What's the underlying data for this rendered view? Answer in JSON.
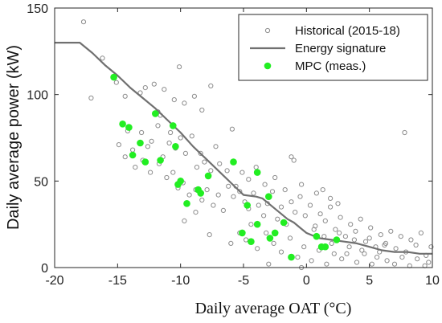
{
  "chart_data": {
    "type": "scatter",
    "xlabel": "Daily average OAT (°C)",
    "ylabel": "Daily average power (kW)",
    "xlim": [
      -20,
      10
    ],
    "ylim": [
      0,
      150
    ],
    "xticks": [
      -20,
      -15,
      -10,
      -5,
      0,
      5,
      10
    ],
    "yticks": [
      0,
      50,
      100,
      150
    ],
    "grid": false,
    "legend_position": "top-right",
    "legend": [
      "Historical (2015-18)",
      "Energy signature",
      "MPC (meas.)"
    ],
    "colors": {
      "historical": "#8c8c8c",
      "signature": "#707070",
      "mpc": "#22ee22"
    },
    "series": [
      {
        "name": "Historical (2015-18)",
        "marker": "open-circle",
        "points": [
          [
            -17.7,
            142
          ],
          [
            -16.2,
            121
          ],
          [
            -17.1,
            98
          ],
          [
            -15.1,
            107
          ],
          [
            -14.4,
            99
          ],
          [
            -13.2,
            101
          ],
          [
            -12.8,
            104
          ],
          [
            -12.1,
            106
          ],
          [
            -11.8,
            90
          ],
          [
            -11.3,
            103
          ],
          [
            -11.6,
            88
          ],
          [
            -10.8,
            78
          ],
          [
            -10.5,
            97
          ],
          [
            -10.1,
            116
          ],
          [
            -9.7,
            95
          ],
          [
            -8.9,
            99
          ],
          [
            -8.3,
            91
          ],
          [
            -7.6,
            105
          ],
          [
            -14.9,
            71
          ],
          [
            -14.2,
            79
          ],
          [
            -13.8,
            68
          ],
          [
            -13.1,
            78
          ],
          [
            -12.6,
            70
          ],
          [
            -12.3,
            73
          ],
          [
            -11.8,
            82
          ],
          [
            -11.4,
            64
          ],
          [
            -10.9,
            72
          ],
          [
            -10.4,
            69
          ],
          [
            -10.0,
            75
          ],
          [
            -9.6,
            66
          ],
          [
            -9.1,
            76
          ],
          [
            -8.7,
            58
          ],
          [
            -8.4,
            66
          ],
          [
            -8.1,
            61
          ],
          [
            -7.6,
            56
          ],
          [
            -7.2,
            70
          ],
          [
            -6.9,
            60
          ],
          [
            -6.3,
            56
          ],
          [
            -5.9,
            80
          ],
          [
            -14.4,
            64
          ],
          [
            -13.6,
            58
          ],
          [
            -13.0,
            62
          ],
          [
            -12.4,
            55
          ],
          [
            -11.7,
            60
          ],
          [
            -11.1,
            52
          ],
          [
            -10.6,
            55
          ],
          [
            -10.2,
            46
          ],
          [
            -9.8,
            49
          ],
          [
            -9.3,
            42
          ],
          [
            -8.8,
            45
          ],
          [
            -8.3,
            39
          ],
          [
            -7.9,
            45
          ],
          [
            -7.4,
            36
          ],
          [
            -7.0,
            42
          ],
          [
            -6.6,
            33
          ],
          [
            -6.2,
            47
          ],
          [
            -5.8,
            41
          ],
          [
            -5.3,
            44
          ],
          [
            -4.9,
            38
          ],
          [
            -4.6,
            34
          ],
          [
            -4.2,
            43
          ],
          [
            -3.8,
            36
          ],
          [
            -3.4,
            30
          ],
          [
            -3.1,
            37
          ],
          [
            -2.7,
            44
          ],
          [
            -2.3,
            28
          ],
          [
            -2.0,
            35
          ],
          [
            -1.6,
            25
          ],
          [
            -1.2,
            38
          ],
          [
            -0.9,
            32
          ],
          [
            -0.5,
            41
          ],
          [
            -0.1,
            30
          ],
          [
            0.3,
            36
          ],
          [
            0.7,
            24
          ],
          [
            1.1,
            31
          ],
          [
            1.5,
            27
          ],
          [
            1.9,
            35
          ],
          [
            2.3,
            22
          ],
          [
            2.7,
            29
          ],
          [
            3.1,
            18
          ],
          [
            3.5,
            25
          ],
          [
            3.9,
            21
          ],
          [
            4.3,
            28
          ],
          [
            4.7,
            15
          ],
          [
            5.1,
            23
          ],
          [
            5.5,
            12
          ],
          [
            5.9,
            19
          ],
          [
            6.3,
            14
          ],
          [
            6.7,
            21
          ],
          [
            7.1,
            11
          ],
          [
            7.5,
            18
          ],
          [
            7.9,
            9
          ],
          [
            8.3,
            16
          ],
          [
            8.7,
            13
          ],
          [
            9.1,
            20
          ],
          [
            9.5,
            7
          ],
          [
            9.9,
            12
          ],
          [
            9.7,
            3
          ],
          [
            -6.0,
            14
          ],
          [
            -5.3,
            20
          ],
          [
            -4.8,
            16
          ],
          [
            -4.4,
            25
          ],
          [
            -3.9,
            11
          ],
          [
            -3.2,
            20
          ],
          [
            -2.6,
            14
          ],
          [
            -2.0,
            9
          ],
          [
            -1.3,
            17
          ],
          [
            -0.7,
            6
          ],
          [
            -0.2,
            12
          ],
          [
            0.4,
            4
          ],
          [
            1.0,
            10
          ],
          [
            1.6,
            2
          ],
          [
            2.2,
            8
          ],
          [
            2.8,
            5
          ],
          [
            3.4,
            12
          ],
          [
            4.0,
            3
          ],
          [
            4.6,
            8
          ],
          [
            5.2,
            2
          ],
          [
            5.8,
            9
          ],
          [
            6.4,
            4
          ],
          [
            7.0,
            2
          ],
          [
            7.6,
            6
          ],
          [
            8.2,
            1
          ],
          [
            8.8,
            5
          ],
          [
            9.4,
            1
          ],
          [
            0.8,
            43
          ],
          [
            1.3,
            45
          ],
          [
            1.9,
            40
          ],
          [
            2.5,
            37
          ],
          [
            -0.4,
            48
          ],
          [
            -1.0,
            62
          ],
          [
            -1.7,
            45
          ],
          [
            -2.5,
            52
          ],
          [
            -3.3,
            48
          ],
          [
            -4.0,
            58
          ],
          [
            -4.6,
            51
          ],
          [
            -5.1,
            55
          ],
          [
            -5.6,
            47
          ],
          [
            7.8,
            78
          ],
          [
            -1.2,
            64
          ],
          [
            -9.7,
            27
          ],
          [
            -8.8,
            32
          ],
          [
            -7.7,
            19
          ],
          [
            -3.0,
            2
          ],
          [
            -0.4,
            0
          ],
          [
            0.6,
            22
          ],
          [
            1.4,
            18
          ],
          [
            2.0,
            14
          ],
          [
            2.6,
            20
          ],
          [
            3.2,
            8
          ],
          [
            3.8,
            16
          ],
          [
            4.4,
            10
          ],
          [
            5.0,
            17
          ],
          [
            5.6,
            6
          ],
          [
            6.2,
            13
          ]
        ]
      },
      {
        "name": "Energy signature",
        "marker": "line",
        "points": [
          [
            -20,
            130
          ],
          [
            -18,
            130
          ],
          [
            -17,
            124
          ],
          [
            -16,
            117
          ],
          [
            -15,
            111
          ],
          [
            -14,
            104
          ],
          [
            -13,
            98
          ],
          [
            -12,
            92
          ],
          [
            -11,
            85
          ],
          [
            -10,
            78
          ],
          [
            -9,
            70
          ],
          [
            -8,
            63
          ],
          [
            -7,
            56
          ],
          [
            -6,
            49
          ],
          [
            -5,
            42
          ],
          [
            -4,
            41
          ],
          [
            -3.5,
            40
          ],
          [
            -3,
            37
          ],
          [
            -2.5,
            34
          ],
          [
            -2,
            31
          ],
          [
            -1.5,
            28
          ],
          [
            -1,
            26
          ],
          [
            -0.5,
            23
          ],
          [
            0,
            20
          ],
          [
            1,
            17
          ],
          [
            2,
            16
          ],
          [
            3,
            15
          ],
          [
            4,
            14
          ],
          [
            5,
            12
          ],
          [
            6,
            10
          ],
          [
            7,
            9
          ],
          [
            8,
            9
          ],
          [
            9,
            8
          ],
          [
            10,
            8
          ]
        ]
      },
      {
        "name": "MPC (meas.)",
        "marker": "filled-circle",
        "points": [
          [
            -15.3,
            110
          ],
          [
            -14.6,
            83
          ],
          [
            -14.1,
            81
          ],
          [
            -13.8,
            65
          ],
          [
            -13.2,
            72
          ],
          [
            -12.8,
            61
          ],
          [
            -12.0,
            89
          ],
          [
            -11.6,
            62
          ],
          [
            -10.6,
            82
          ],
          [
            -10.4,
            70
          ],
          [
            -10.2,
            48
          ],
          [
            -10.0,
            50
          ],
          [
            -9.5,
            37
          ],
          [
            -8.6,
            45
          ],
          [
            -8.4,
            43
          ],
          [
            -7.8,
            53
          ],
          [
            -5.8,
            61
          ],
          [
            -5.1,
            20
          ],
          [
            -4.7,
            36
          ],
          [
            -4.4,
            15
          ],
          [
            -3.9,
            55
          ],
          [
            -3.9,
            25
          ],
          [
            -3.0,
            41
          ],
          [
            -2.9,
            17
          ],
          [
            -2.5,
            20
          ],
          [
            -1.8,
            26
          ],
          [
            -1.2,
            6
          ],
          [
            0.8,
            18
          ],
          [
            1.2,
            12
          ],
          [
            1.5,
            12
          ],
          [
            2.4,
            16
          ]
        ]
      }
    ]
  }
}
